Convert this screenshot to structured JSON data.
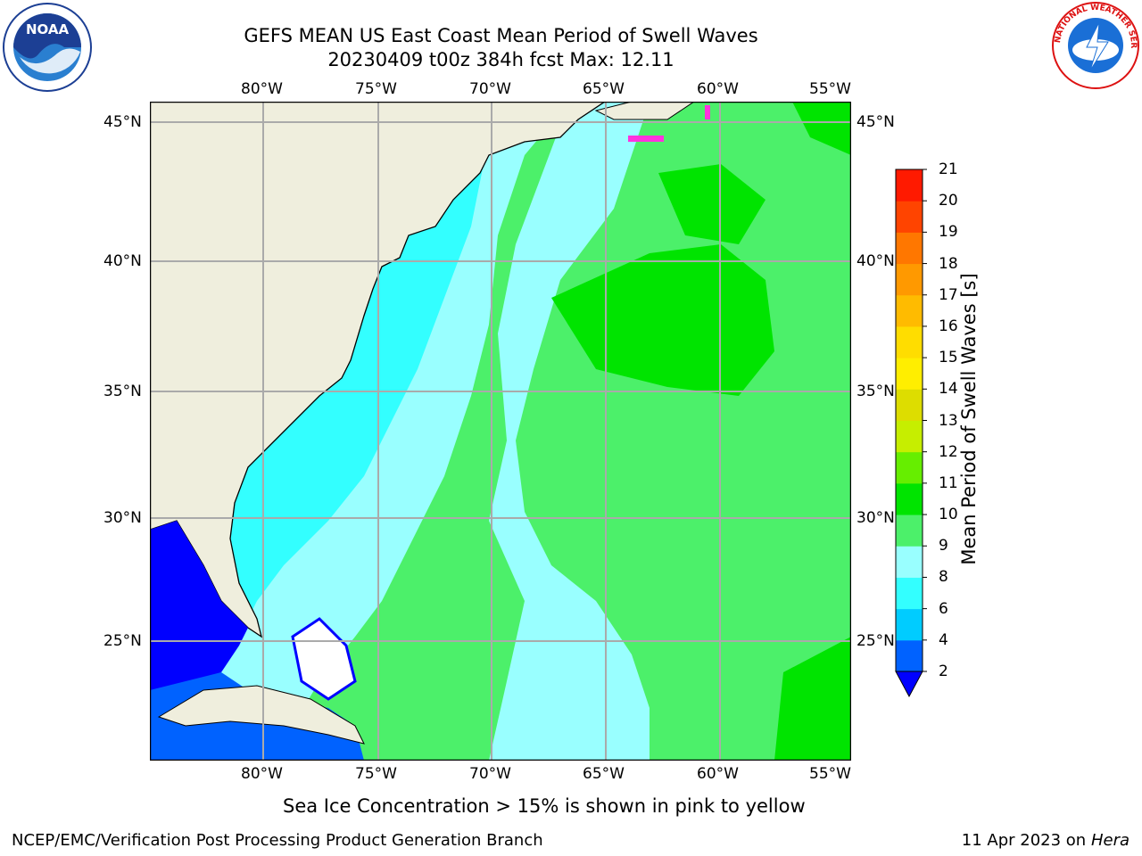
{
  "header": {
    "title_line1": "GEFS MEAN US East Coast Mean Period of Swell Waves",
    "title_line2": "20230409 t00z 384h fcst   Max: 12.11"
  },
  "logos": {
    "left": {
      "icon": "noaa-logo-icon",
      "text": "NOAA"
    },
    "right": {
      "icon": "nws-logo-icon",
      "text": "NATIONAL WEATHER SERVICE"
    }
  },
  "map": {
    "lon_labels": [
      "80°W",
      "75°W",
      "70°W",
      "65°W",
      "60°W",
      "55°W"
    ],
    "lat_labels": [
      "45°N",
      "40°N",
      "35°N",
      "30°N",
      "25°N"
    ],
    "land_color": "#efeedd",
    "grid_color": "#aaaaaa"
  },
  "colorbar": {
    "label": "Mean Period of Swell Waves [s]",
    "ticks": [
      "2",
      "4",
      "6",
      "8",
      "9",
      "10",
      "11",
      "12",
      "13",
      "14",
      "15",
      "16",
      "17",
      "18",
      "19",
      "20",
      "21"
    ],
    "colors": [
      "#0062ff",
      "#00ccff",
      "#33ffff",
      "#99ffff",
      "#4cf06a",
      "#00e400",
      "#66ee00",
      "#c6ee00",
      "#dddd00",
      "#ffee00",
      "#ffdd00",
      "#ffbb00",
      "#ff9900",
      "#ff7700",
      "#ff4400",
      "#ff1a00",
      "#ff0000"
    ],
    "under_color": "#0000ff"
  },
  "caption": "Sea Ice Concentration > 15% is shown in pink to yellow",
  "footer": {
    "left": "NCEP/EMC/Verification Post Processing Product Generation Branch",
    "right_date": "11 Apr 2023 on ",
    "right_host": "Hera"
  }
}
